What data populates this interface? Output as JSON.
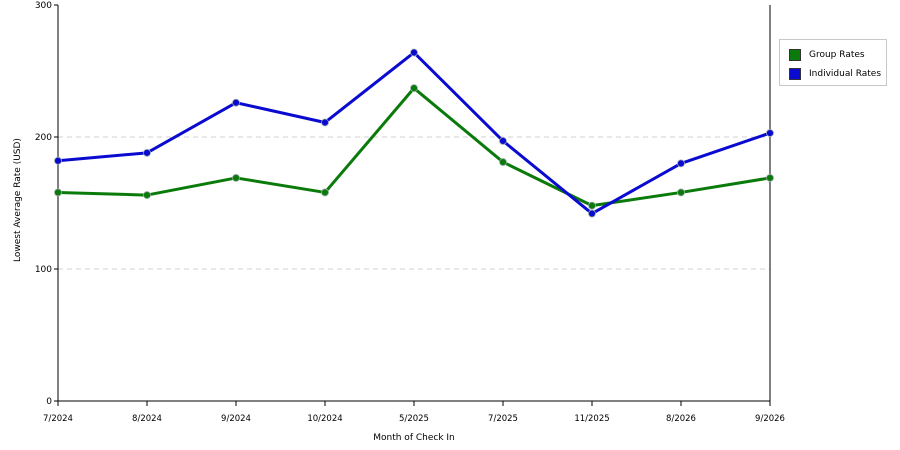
{
  "chart_data": {
    "type": "line",
    "categories": [
      "7/2024",
      "8/2024",
      "9/2024",
      "10/2024",
      "5/2025",
      "7/2025",
      "11/2025",
      "8/2026",
      "9/2026"
    ],
    "series": [
      {
        "name": "Group Rates",
        "color": "#0a7a0a",
        "values": [
          158,
          156,
          169,
          158,
          237,
          181,
          148,
          158,
          169
        ]
      },
      {
        "name": "Individual Rates",
        "color": "#0a0ad0",
        "values": [
          182,
          188,
          226,
          211,
          264,
          197,
          142,
          180,
          203
        ]
      }
    ],
    "yticks": [
      0,
      100,
      200,
      300
    ],
    "ylim": [
      0,
      300
    ],
    "xlabel": "Month of Check In",
    "ylabel": "Lowest Average Rate (USD)",
    "grid": "horizontal dashed",
    "legend_position": "right"
  }
}
